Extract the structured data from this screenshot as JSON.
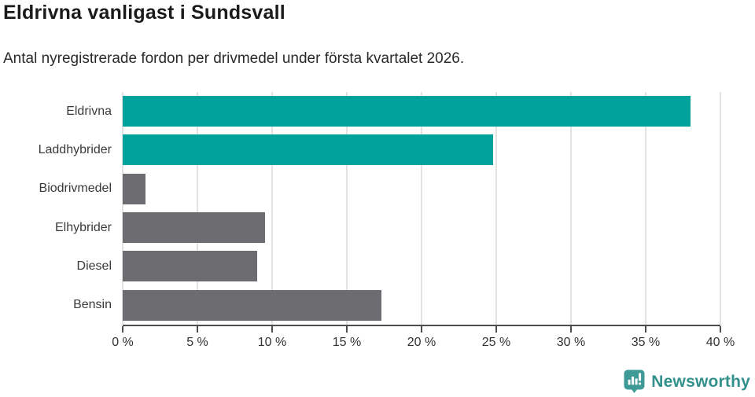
{
  "header": {
    "title": "Eldrivna vanligast i Sundsvall",
    "subtitle": "Antal nyregistrerade fordon per drivmedel under första kvartalet 2026."
  },
  "chart_data": {
    "type": "bar",
    "orientation": "horizontal",
    "title": "Eldrivna vanligast i Sundsvall",
    "subtitle": "Antal nyregistrerade fordon per drivmedel under första kvartalet 2026.",
    "categories": [
      "Eldrivna",
      "Laddhybrider",
      "Biodrivmedel",
      "Elhybrider",
      "Diesel",
      "Bensin"
    ],
    "values": [
      38.0,
      24.8,
      1.5,
      9.5,
      9.0,
      17.3
    ],
    "unit": "%",
    "xlabel": "",
    "ylabel": "",
    "xlim": [
      0,
      40
    ],
    "xticks": [
      0,
      5,
      10,
      15,
      20,
      25,
      30,
      35,
      40
    ],
    "xtick_labels": [
      "0 %",
      "5 %",
      "10 %",
      "15 %",
      "20 %",
      "25 %",
      "30 %",
      "35 %",
      "40 %"
    ],
    "bar_colors": [
      "#00a29b",
      "#00a29b",
      "#6c6c71",
      "#6c6c71",
      "#6c6c71",
      "#6c6c71"
    ],
    "grid": true,
    "gridline_color": "#e2e2e2",
    "axis_color": "#4d4d4d",
    "legend": "none"
  },
  "colors": {
    "teal": "#00a29b",
    "gray": "#6c6c71",
    "gridline": "#e2e2e2",
    "axis": "#4d4d4d",
    "title_text": "#1b1b1b",
    "body_text": "#333333",
    "logo_teal": "#33918d"
  },
  "footer": {
    "brand": "Newsworthy",
    "logo_icon": "newsworthy-bar-chart-bubble-icon"
  }
}
